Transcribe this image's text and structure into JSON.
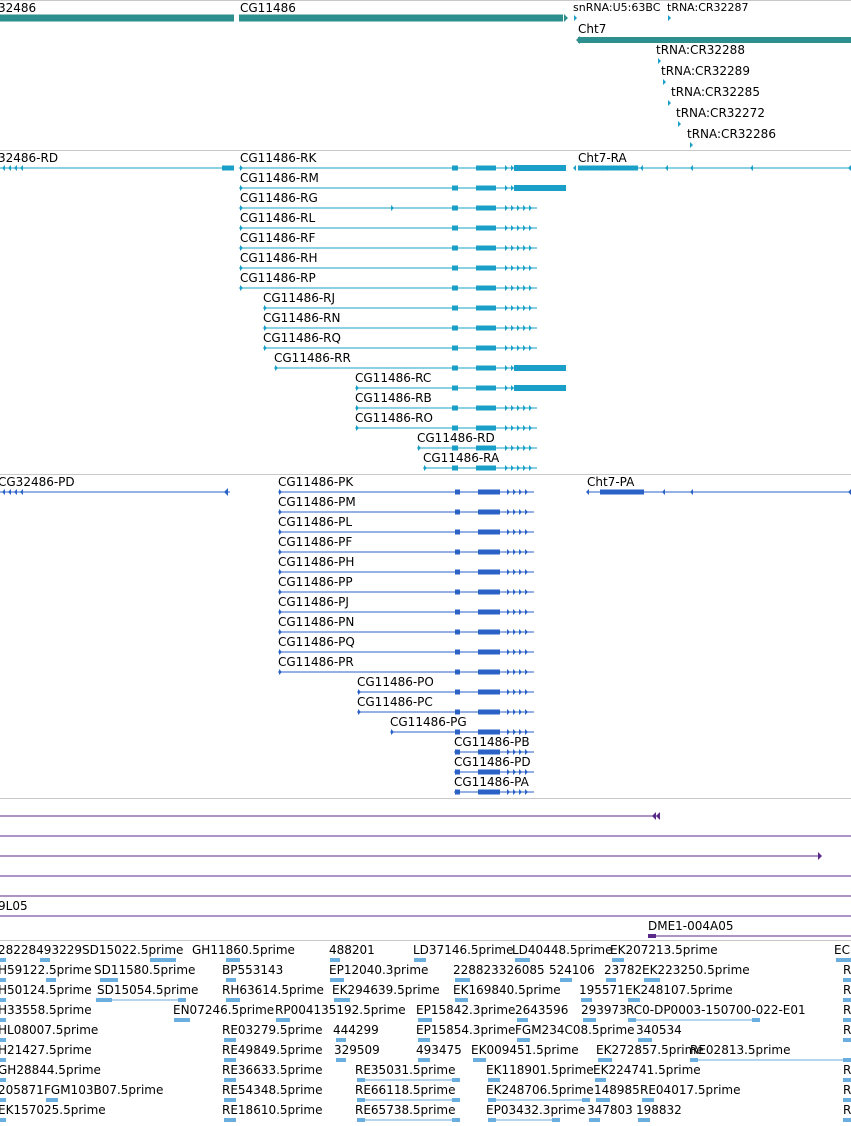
{
  "colors": {
    "gene": "#2e8f8f",
    "mrna": "#1aa0c8",
    "protein": "#2b62c8",
    "purple": "#5a2a8a",
    "est": "#6aaee0",
    "separator": "#c8c8c8"
  },
  "gene_track": {
    "labels": [
      {
        "id": "g1",
        "text": "32486"
      },
      {
        "id": "g2",
        "text": "CG11486"
      },
      {
        "id": "g3",
        "text": "snRNA:U5:63BC"
      },
      {
        "id": "g4",
        "text": "tRNA:CR32287"
      },
      {
        "id": "g5",
        "text": "Cht7"
      },
      {
        "id": "g6",
        "text": "tRNA:CR32288"
      },
      {
        "id": "g7",
        "text": "tRNA:CR32289"
      },
      {
        "id": "g8",
        "text": "tRNA:CR32285"
      },
      {
        "id": "g9",
        "text": "tRNA:CR32272"
      },
      {
        "id": "g10",
        "text": "tRNA:CR32286"
      }
    ]
  },
  "mrna_track": {
    "labels": [
      {
        "id": "m0",
        "text": "32486-RD"
      },
      {
        "id": "m1",
        "text": "CG11486-RK"
      },
      {
        "id": "m2",
        "text": "CG11486-RM"
      },
      {
        "id": "m3",
        "text": "CG11486-RG"
      },
      {
        "id": "m4",
        "text": "CG11486-RL"
      },
      {
        "id": "m5",
        "text": "CG11486-RF"
      },
      {
        "id": "m6",
        "text": "CG11486-RH"
      },
      {
        "id": "m7",
        "text": "CG11486-RP"
      },
      {
        "id": "m8",
        "text": "CG11486-RJ"
      },
      {
        "id": "m9",
        "text": "CG11486-RN"
      },
      {
        "id": "m10",
        "text": "CG11486-RQ"
      },
      {
        "id": "m11",
        "text": "CG11486-RR"
      },
      {
        "id": "m12",
        "text": "CG11486-RC"
      },
      {
        "id": "m13",
        "text": "CG11486-RB"
      },
      {
        "id": "m14",
        "text": "CG11486-RO"
      },
      {
        "id": "m15",
        "text": "CG11486-RD"
      },
      {
        "id": "m16",
        "text": "CG11486-RA"
      },
      {
        "id": "m17",
        "text": "Cht7-RA"
      }
    ]
  },
  "protein_track": {
    "labels": [
      {
        "id": "p0",
        "text": "CG32486-PD"
      },
      {
        "id": "p1",
        "text": "CG11486-PK"
      },
      {
        "id": "p2",
        "text": "CG11486-PM"
      },
      {
        "id": "p3",
        "text": "CG11486-PL"
      },
      {
        "id": "p4",
        "text": "CG11486-PF"
      },
      {
        "id": "p5",
        "text": "CG11486-PH"
      },
      {
        "id": "p6",
        "text": "CG11486-PP"
      },
      {
        "id": "p7",
        "text": "CG11486-PJ"
      },
      {
        "id": "p8",
        "text": "CG11486-PN"
      },
      {
        "id": "p9",
        "text": "CG11486-PQ"
      },
      {
        "id": "p10",
        "text": "CG11486-PR"
      },
      {
        "id": "p11",
        "text": "CG11486-PO"
      },
      {
        "id": "p12",
        "text": "CG11486-PC"
      },
      {
        "id": "p13",
        "text": "CG11486-PG"
      },
      {
        "id": "p14",
        "text": "CG11486-PB"
      },
      {
        "id": "p15",
        "text": "CG11486-PD"
      },
      {
        "id": "p16",
        "text": "CG11486-PA"
      },
      {
        "id": "p17",
        "text": "Cht7-PA"
      }
    ]
  },
  "misc_track": {
    "labels": [
      {
        "id": "x1",
        "text": "9L05"
      },
      {
        "id": "x2",
        "text": "DME1-004A05"
      }
    ]
  },
  "est_track": {
    "labels": [
      {
        "id": "e1",
        "text": "28228493229SD15022.5prime"
      },
      {
        "id": "e2",
        "text": "GH11860.5prime"
      },
      {
        "id": "e3",
        "text": "488201"
      },
      {
        "id": "e4",
        "text": "LD37146.5prime"
      },
      {
        "id": "e5",
        "text": "LD40448.5prime"
      },
      {
        "id": "e6",
        "text": "EK207213.5prime"
      },
      {
        "id": "e7",
        "text": "EC"
      },
      {
        "id": "e8",
        "text": "H59122.5prime"
      },
      {
        "id": "e9",
        "text": "SD11580.5prime"
      },
      {
        "id": "e10",
        "text": "BP553143"
      },
      {
        "id": "e11",
        "text": "EP12040.3prime"
      },
      {
        "id": "e12",
        "text": "228823326085"
      },
      {
        "id": "e13",
        "text": "524106"
      },
      {
        "id": "e14",
        "text": "23782"
      },
      {
        "id": "e15",
        "text": "EK223250.5prime"
      },
      {
        "id": "e16",
        "text": "R"
      },
      {
        "id": "e17",
        "text": "H50124.5prime"
      },
      {
        "id": "e18",
        "text": "SD15054.5prime"
      },
      {
        "id": "e19",
        "text": "RH63614.5prime"
      },
      {
        "id": "e20",
        "text": "EK294639.5prime"
      },
      {
        "id": "e21",
        "text": "EK169840.5prime"
      },
      {
        "id": "e22",
        "text": "195571"
      },
      {
        "id": "e23",
        "text": "EK248107.5prime"
      },
      {
        "id": "e24",
        "text": "R"
      },
      {
        "id": "e25",
        "text": "H33558.5prime"
      },
      {
        "id": "e26",
        "text": "EN07246.5prime"
      },
      {
        "id": "e27",
        "text": "RP004135192.5prime"
      },
      {
        "id": "e28",
        "text": "EP15842.3prime"
      },
      {
        "id": "e29",
        "text": "2643596"
      },
      {
        "id": "e30",
        "text": "293973"
      },
      {
        "id": "e31",
        "text": "RC0-DP0003-150700-022-E01"
      },
      {
        "id": "e32",
        "text": "R"
      },
      {
        "id": "e33",
        "text": "HL08007.5prime"
      },
      {
        "id": "e34",
        "text": "RE03279.5prime"
      },
      {
        "id": "e35",
        "text": "444299"
      },
      {
        "id": "e36",
        "text": "EP15854.3prime"
      },
      {
        "id": "e37",
        "text": "FGM234C08.5prime"
      },
      {
        "id": "e38",
        "text": "340534"
      },
      {
        "id": "e39",
        "text": "R"
      },
      {
        "id": "e40",
        "text": "H21427.5prime"
      },
      {
        "id": "e41",
        "text": "RE49849.5prime"
      },
      {
        "id": "e42",
        "text": "329509"
      },
      {
        "id": "e43",
        "text": "493475"
      },
      {
        "id": "e44",
        "text": "EK009451.5prime"
      },
      {
        "id": "e45",
        "text": "EK272857.5prime"
      },
      {
        "id": "e46",
        "text": "RE02813.5prime"
      },
      {
        "id": "e47",
        "text": "GH28844.5prime"
      },
      {
        "id": "e48",
        "text": "RE36633.5prime"
      },
      {
        "id": "e49",
        "text": "RE35031.5prime"
      },
      {
        "id": "e50",
        "text": "EK118901.5prime"
      },
      {
        "id": "e51",
        "text": "EK224741.5prime"
      },
      {
        "id": "e52",
        "text": "R"
      },
      {
        "id": "e53",
        "text": "205871"
      },
      {
        "id": "e54",
        "text": "FGM103B07.5prime"
      },
      {
        "id": "e55",
        "text": "RE54348.5prime"
      },
      {
        "id": "e56",
        "text": "RE66118.5prime"
      },
      {
        "id": "e57",
        "text": "EK248706.5prime"
      },
      {
        "id": "e58",
        "text": "148985"
      },
      {
        "id": "e59",
        "text": "RE04017.5prime"
      },
      {
        "id": "e60",
        "text": "R"
      },
      {
        "id": "e61",
        "text": "EK157025.5prime"
      },
      {
        "id": "e62",
        "text": "RE18610.5prime"
      },
      {
        "id": "e63",
        "text": "RE65738.5prime"
      },
      {
        "id": "e64",
        "text": "EP03432.3prime"
      },
      {
        "id": "e65",
        "text": "347803"
      },
      {
        "id": "e66",
        "text": "198832"
      },
      {
        "id": "e67",
        "text": "R"
      }
    ]
  }
}
